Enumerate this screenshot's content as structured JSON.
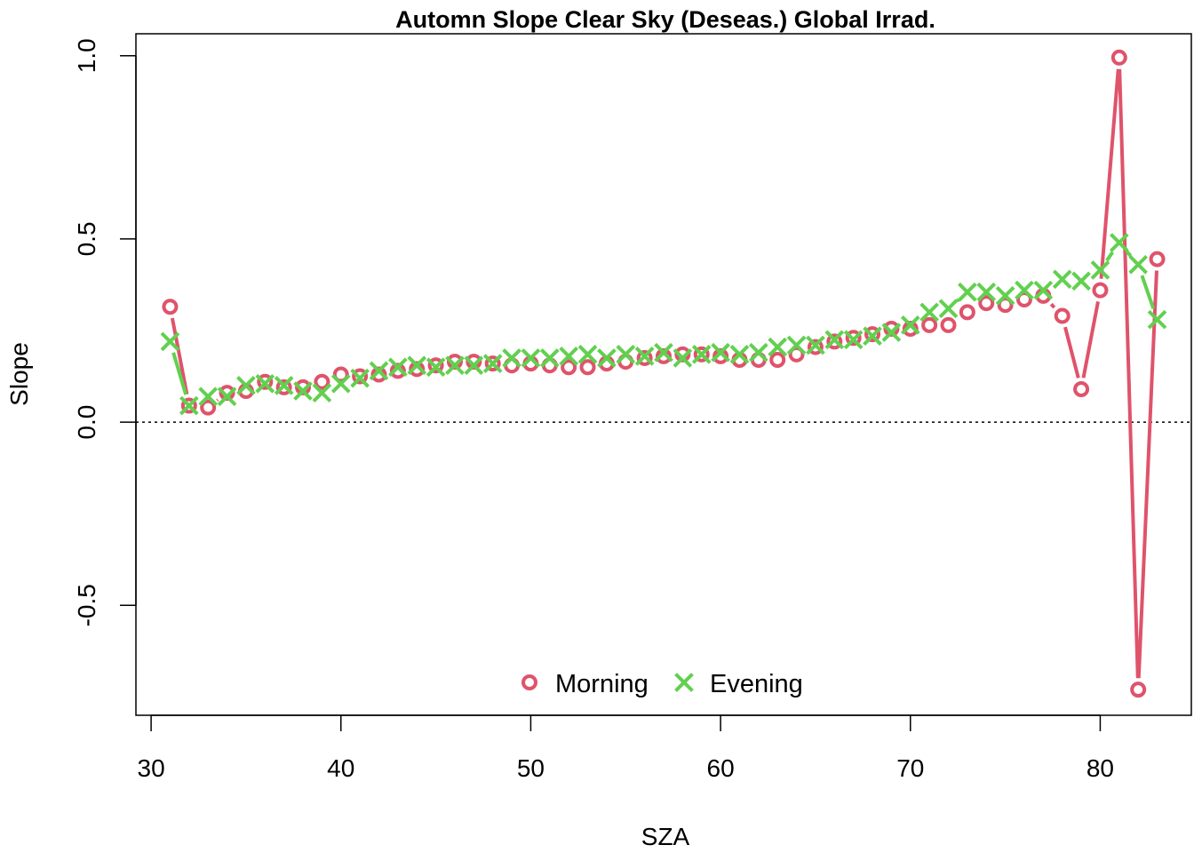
{
  "chart_data": {
    "type": "line",
    "title": "Automn Slope Clear Sky (Deseas.) Global Irrad.",
    "xlabel": "SZA",
    "ylabel": "Slope",
    "xlim": [
      29.2,
      84.8
    ],
    "ylim": [
      -0.8,
      1.06
    ],
    "xticks": [
      30,
      40,
      50,
      60,
      70,
      80
    ],
    "xtick_labels": [
      "30",
      "40",
      "50",
      "60",
      "70",
      "80"
    ],
    "yticks": [
      -0.5,
      0.0,
      0.5,
      1.0
    ],
    "ytick_labels": [
      "-0.5",
      "0.0",
      "0.5",
      "1.0"
    ],
    "reference_line": {
      "y": 0,
      "style": "dotted"
    },
    "legend": {
      "position": "bottom-center"
    },
    "series": [
      {
        "name": "Morning",
        "color": "#DF536B",
        "marker": "circle",
        "x": [
          31,
          32,
          33,
          34,
          35,
          36,
          37,
          38,
          39,
          40,
          41,
          42,
          43,
          44,
          45,
          46,
          47,
          48,
          49,
          50,
          51,
          52,
          53,
          54,
          55,
          56,
          57,
          58,
          59,
          60,
          61,
          62,
          63,
          64,
          65,
          66,
          67,
          68,
          69,
          70,
          71,
          72,
          73,
          74,
          75,
          76,
          77,
          78,
          79,
          80,
          81,
          82,
          83
        ],
        "y": [
          0.315,
          0.045,
          0.04,
          0.08,
          0.085,
          0.11,
          0.095,
          0.095,
          0.11,
          0.13,
          0.125,
          0.13,
          0.14,
          0.145,
          0.155,
          0.165,
          0.165,
          0.16,
          0.155,
          0.16,
          0.155,
          0.15,
          0.15,
          0.16,
          0.165,
          0.175,
          0.18,
          0.185,
          0.185,
          0.18,
          0.17,
          0.17,
          0.17,
          0.185,
          0.205,
          0.22,
          0.23,
          0.24,
          0.255,
          0.255,
          0.265,
          0.265,
          0.3,
          0.325,
          0.32,
          0.335,
          0.345,
          0.29,
          0.09,
          0.36,
          0.995,
          -0.73,
          0.445
        ]
      },
      {
        "name": "Evening",
        "color": "#61D04F",
        "marker": "x",
        "x": [
          31,
          32,
          33,
          34,
          35,
          36,
          37,
          38,
          39,
          40,
          41,
          42,
          43,
          44,
          45,
          46,
          47,
          48,
          49,
          50,
          51,
          52,
          53,
          54,
          55,
          56,
          57,
          58,
          59,
          60,
          61,
          62,
          63,
          64,
          65,
          66,
          67,
          68,
          69,
          70,
          71,
          72,
          73,
          74,
          75,
          76,
          77,
          78,
          79,
          80,
          81,
          82,
          83
        ],
        "y": [
          0.22,
          0.045,
          0.07,
          0.07,
          0.1,
          0.105,
          0.1,
          0.085,
          0.08,
          0.105,
          0.12,
          0.14,
          0.15,
          0.155,
          0.15,
          0.155,
          0.155,
          0.16,
          0.175,
          0.175,
          0.175,
          0.18,
          0.185,
          0.175,
          0.185,
          0.18,
          0.19,
          0.175,
          0.185,
          0.19,
          0.185,
          0.19,
          0.205,
          0.21,
          0.21,
          0.225,
          0.225,
          0.235,
          0.245,
          0.265,
          0.3,
          0.31,
          0.355,
          0.355,
          0.345,
          0.36,
          0.36,
          0.39,
          0.385,
          0.415,
          0.49,
          0.43,
          0.28
        ]
      }
    ]
  }
}
